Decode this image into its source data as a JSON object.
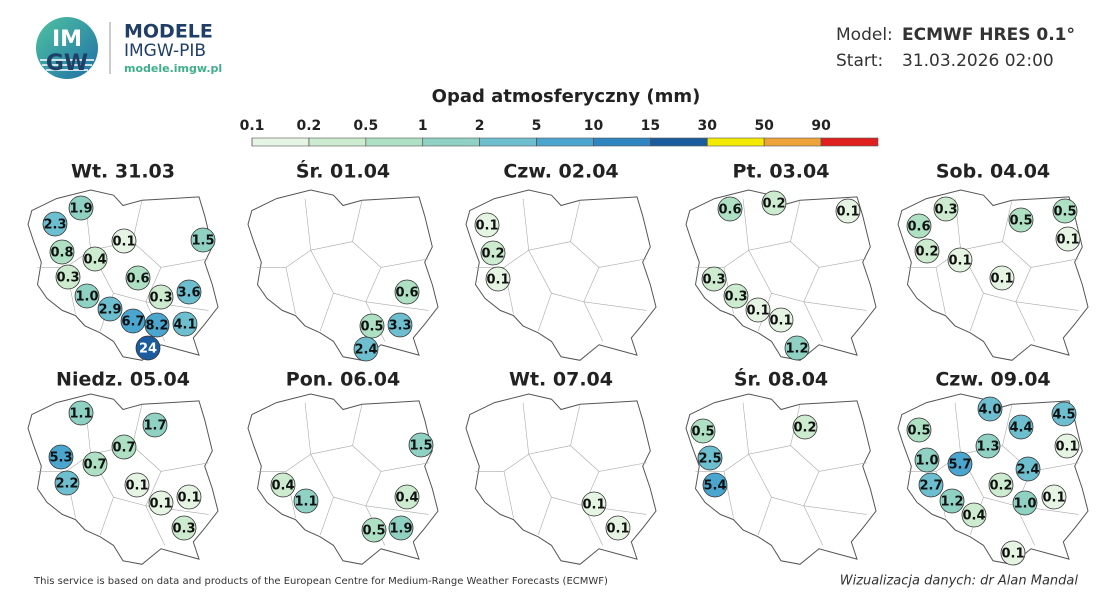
{
  "header": {
    "logo_top": "IM",
    "logo_bottom": "GW",
    "brand": "MODELE",
    "org": "IMGW-PIB",
    "url": "modele.imgw.pl",
    "model_label": "Model:",
    "model": "ECMWF HRES 0.1°",
    "start_label": "Start:",
    "start": "31.03.2026 02:00"
  },
  "legend": {
    "title": "Opad atmosferyczny (mm)",
    "ticks": [
      0.1,
      0.2,
      0.5,
      1,
      2,
      5,
      10,
      15,
      30,
      50,
      90
    ],
    "colors": [
      "#e6f4e3",
      "#cdeccf",
      "#aee0c3",
      "#8fd1c3",
      "#6dbfd0",
      "#4aa5cf",
      "#2e85c0",
      "#1a5c9e",
      "#f4ea00",
      "#eea33a",
      "#e0201e"
    ]
  },
  "panels": [
    {
      "title": "Wt. 31.03",
      "values": [
        2.3,
        1.9,
        0.8,
        0.4,
        0.1,
        1.5,
        0.3,
        0.6,
        1.0,
        2.9,
        0.3,
        3.6,
        6.7,
        8.2,
        4.1,
        24
      ],
      "value_labels": [
        "2.3",
        "1.9",
        "0.8",
        "0.4",
        "0.1",
        "1.5",
        "0.3",
        "0.6",
        "1.0",
        "2.9",
        "0.3",
        "3.6",
        "6.7",
        "8.2",
        "4.1",
        "24"
      ]
    },
    {
      "title": "Śr. 01.04",
      "values": [
        0.6,
        0.5,
        3.3,
        2.4
      ],
      "value_labels": [
        "0.6",
        "0.5",
        "3.3",
        "2.4"
      ]
    },
    {
      "title": "Czw. 02.04",
      "values": [
        0.1,
        0.2,
        0.1
      ],
      "value_labels": [
        "0.1",
        "0.2",
        "0.1"
      ]
    },
    {
      "title": "Pt. 03.04",
      "values": [
        0.6,
        0.2,
        0.1,
        0.3,
        0.3,
        0.1,
        0.1,
        1.2
      ],
      "value_labels": [
        "0.6",
        "0.2",
        "0.1",
        "0.3",
        "0.3",
        "0.1",
        "0.1",
        "1.2"
      ]
    },
    {
      "title": "Sob. 04.04",
      "values": [
        0.3,
        0.6,
        0.5,
        0.5,
        0.1,
        0.2,
        0.1,
        0.1
      ],
      "value_labels": [
        "0.3",
        "0.6",
        "0.5",
        "0.5",
        "0.1",
        "0.2",
        "0.1",
        "0.1"
      ]
    },
    {
      "title": "Niedz. 05.04",
      "values": [
        1.1,
        1.7,
        0.7,
        5.3,
        0.7,
        2.2,
        0.1,
        0.1,
        0.1,
        0.3
      ],
      "value_labels": [
        "1.1",
        "1.7",
        "0.7",
        "5.3",
        "0.7",
        "2.2",
        "0.1",
        "0.1",
        "0.1",
        "0.3"
      ]
    },
    {
      "title": "Pon. 06.04",
      "values": [
        1.5,
        0.4,
        1.1,
        0.4,
        0.5,
        1.9
      ],
      "value_labels": [
        "1.5",
        "0.4",
        "1.1",
        "0.4",
        "0.5",
        "1.9"
      ]
    },
    {
      "title": "Wt. 07.04",
      "values": [
        0.1,
        0.1
      ],
      "value_labels": [
        "0.1",
        "0.1"
      ]
    },
    {
      "title": "Śr. 08.04",
      "values": [
        0.5,
        0.2,
        2.5,
        5.4
      ],
      "value_labels": [
        "0.5",
        "0.2",
        "2.5",
        "5.4"
      ]
    },
    {
      "title": "Czw. 09.04",
      "values": [
        4.0,
        4.5,
        0.5,
        4.4,
        1.3,
        0.1,
        1.0,
        5.7,
        2.4,
        2.7,
        0.2,
        1.2,
        1.0,
        0.1,
        0.4,
        0.1
      ],
      "value_labels": [
        "4.0",
        "4.5",
        "0.5",
        "4.4",
        "1.3",
        "0.1",
        "1.0",
        "5.7",
        "2.4",
        "2.7",
        "0.2",
        "1.2",
        "1.0",
        "0.1",
        "0.4",
        "0.1"
      ]
    }
  ],
  "footer": {
    "source": "This service is based on data and products of the European Centre for Medium-Range Weather Forecasts (ECMWF)",
    "credit": "Wizualizacja danych: dr Alan Mandal"
  }
}
